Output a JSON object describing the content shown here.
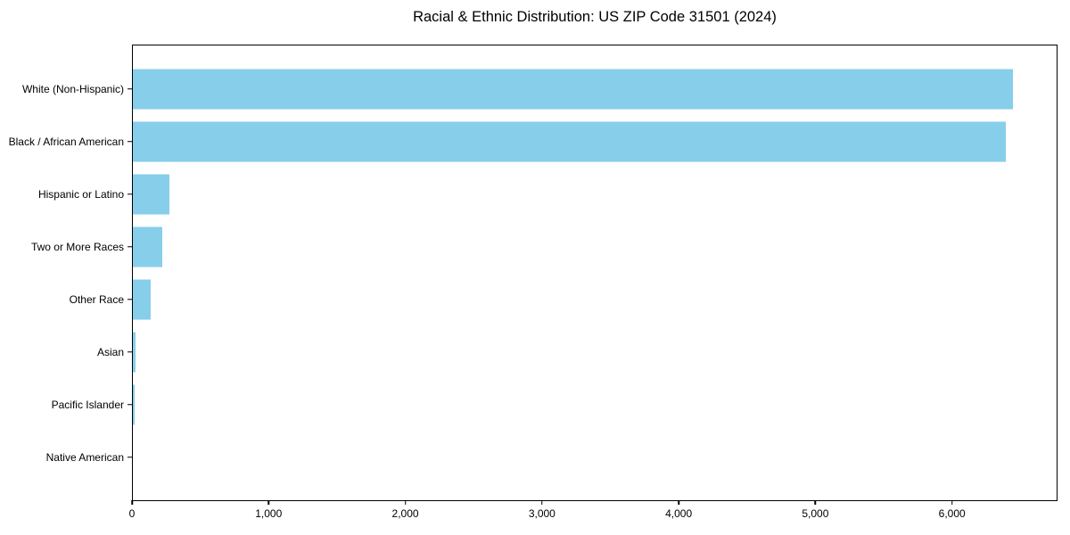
{
  "figure": {
    "background": "#ffffff"
  },
  "chart_data": {
    "type": "bar",
    "orientation": "horizontal",
    "title": "Racial & Ethnic Distribution: US ZIP Code 31501 (2024)",
    "categories": [
      "White (Non-Hispanic)",
      "Black / African American",
      "Hispanic or Latino",
      "Two or More Races",
      "Other Race",
      "Asian",
      "Pacific Islander",
      "Native American"
    ],
    "values": [
      6450,
      6402,
      268,
      214,
      133,
      21,
      16,
      0
    ],
    "bar_color": "#87CEEB",
    "axis_color": "#000000",
    "text_color": "#000000",
    "xlabel": "",
    "ylabel": "",
    "xlim": [
      0,
      6772
    ],
    "x_tick_values": [
      0,
      1000,
      2000,
      3000,
      4000,
      5000,
      6000
    ],
    "x_tick_labels": [
      "0",
      "1,000",
      "2,000",
      "3,000",
      "4,000",
      "5,000",
      "6,000"
    ],
    "grid": false,
    "legend": "none"
  }
}
